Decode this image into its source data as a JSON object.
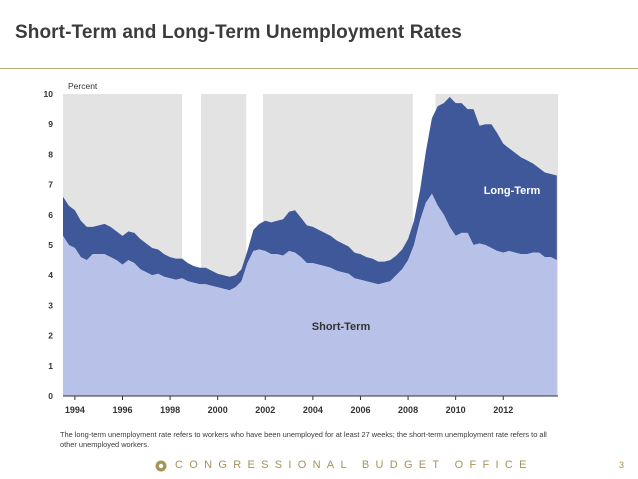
{
  "header": {
    "title": "Short-Term and Long-Term Unemployment Rates"
  },
  "chart_data": {
    "type": "area",
    "title": "Short-Term and Long-Term Unemployment Rates",
    "ylabel": "Percent",
    "xlabel": "",
    "ylim": [
      0,
      10
    ],
    "xlim": [
      1993.0,
      2013.8
    ],
    "y_ticks": [
      "0",
      "1",
      "2",
      "3",
      "4",
      "5",
      "6",
      "7",
      "8",
      "9",
      "10"
    ],
    "x_ticks": [
      {
        "label": "1994",
        "value": 1993.5
      },
      {
        "label": "1996",
        "value": 1995.5
      },
      {
        "label": "1998",
        "value": 1997.5
      },
      {
        "label": "2000",
        "value": 1999.5
      },
      {
        "label": "2002",
        "value": 2001.5
      },
      {
        "label": "2004",
        "value": 2003.5
      },
      {
        "label": "2006",
        "value": 2005.5
      },
      {
        "label": "2008",
        "value": 2007.5
      },
      {
        "label": "2010",
        "value": 2009.5
      },
      {
        "label": "2012",
        "value": 2011.5
      }
    ],
    "shaded_periods": [
      [
        1993.0,
        1998.0
      ],
      [
        1998.8,
        2000.7
      ],
      [
        2001.4,
        2007.7
      ],
      [
        2008.65,
        2013.8
      ]
    ],
    "labels": {
      "short": "Short-Term",
      "long": "Long-Term"
    },
    "x": [
      1993.0,
      1993.25,
      1993.5,
      1993.75,
      1994.0,
      1994.25,
      1994.5,
      1994.75,
      1995.0,
      1995.25,
      1995.5,
      1995.75,
      1996.0,
      1996.25,
      1996.5,
      1996.75,
      1997.0,
      1997.25,
      1997.5,
      1997.75,
      1998.0,
      1998.25,
      1998.5,
      1998.75,
      1999.0,
      1999.25,
      1999.5,
      1999.75,
      2000.0,
      2000.25,
      2000.5,
      2000.75,
      2001.0,
      2001.25,
      2001.5,
      2001.75,
      2002.0,
      2002.25,
      2002.5,
      2002.75,
      2003.0,
      2003.25,
      2003.5,
      2003.75,
      2004.0,
      2004.25,
      2004.5,
      2004.75,
      2005.0,
      2005.25,
      2005.5,
      2005.75,
      2006.0,
      2006.25,
      2006.5,
      2006.75,
      2007.0,
      2007.25,
      2007.5,
      2007.75,
      2008.0,
      2008.25,
      2008.5,
      2008.75,
      2009.0,
      2009.25,
      2009.5,
      2009.75,
      2010.0,
      2010.25,
      2010.5,
      2010.75,
      2011.0,
      2011.25,
      2011.5,
      2011.75,
      2012.0,
      2012.25,
      2012.5,
      2012.75,
      2013.0,
      2013.25,
      2013.5,
      2013.75
    ],
    "series": [
      {
        "name": "Short-Term",
        "values": [
          5.3,
          5.0,
          4.9,
          4.6,
          4.5,
          4.7,
          4.7,
          4.7,
          4.6,
          4.5,
          4.35,
          4.5,
          4.4,
          4.2,
          4.1,
          4.0,
          4.05,
          3.95,
          3.9,
          3.85,
          3.9,
          3.8,
          3.75,
          3.7,
          3.7,
          3.65,
          3.6,
          3.55,
          3.5,
          3.6,
          3.8,
          4.4,
          4.8,
          4.85,
          4.8,
          4.7,
          4.7,
          4.65,
          4.8,
          4.75,
          4.6,
          4.4,
          4.4,
          4.35,
          4.3,
          4.25,
          4.15,
          4.1,
          4.05,
          3.9,
          3.85,
          3.8,
          3.75,
          3.7,
          3.75,
          3.8,
          4.0,
          4.2,
          4.5,
          5.0,
          5.8,
          6.4,
          6.7,
          6.3,
          6.0,
          5.6,
          5.3,
          5.4,
          5.4,
          5.0,
          5.05,
          5.0,
          4.9,
          4.8,
          4.75,
          4.8,
          4.75,
          4.7,
          4.7,
          4.75,
          4.75,
          4.6,
          4.6,
          4.5
        ]
      },
      {
        "name": "Long-Term",
        "values": [
          1.3,
          1.3,
          1.25,
          1.2,
          1.1,
          0.9,
          0.95,
          1.0,
          1.0,
          0.95,
          0.95,
          0.95,
          1.0,
          1.0,
          0.95,
          0.9,
          0.8,
          0.75,
          0.7,
          0.7,
          0.65,
          0.6,
          0.55,
          0.55,
          0.55,
          0.5,
          0.45,
          0.45,
          0.45,
          0.4,
          0.4,
          0.4,
          0.7,
          0.85,
          1.0,
          1.05,
          1.1,
          1.2,
          1.3,
          1.4,
          1.3,
          1.25,
          1.2,
          1.15,
          1.1,
          1.05,
          1.0,
          0.95,
          0.9,
          0.85,
          0.85,
          0.8,
          0.8,
          0.75,
          0.7,
          0.7,
          0.65,
          0.65,
          0.7,
          0.8,
          1.0,
          1.7,
          2.5,
          3.3,
          3.7,
          4.3,
          4.4,
          4.3,
          4.1,
          4.5,
          3.9,
          4.0,
          4.1,
          3.9,
          3.6,
          3.4,
          3.3,
          3.2,
          3.1,
          2.95,
          2.8,
          2.8,
          2.75,
          2.8
        ]
      }
    ]
  },
  "note": {
    "text": "The long-term unemployment rate refers to workers who have been unemployed for at least 27 weeks; the short-term unemployment rate refers to all other unemployed workers."
  },
  "footer": {
    "org": "CONGRESSIONAL BUDGET OFFICE",
    "page": "3"
  },
  "colors": {
    "short": "#b8c2e9",
    "long": "#3f5899",
    "shade": "#e3e3e3",
    "title": "#3b3b3b",
    "footer": "#a89257"
  }
}
